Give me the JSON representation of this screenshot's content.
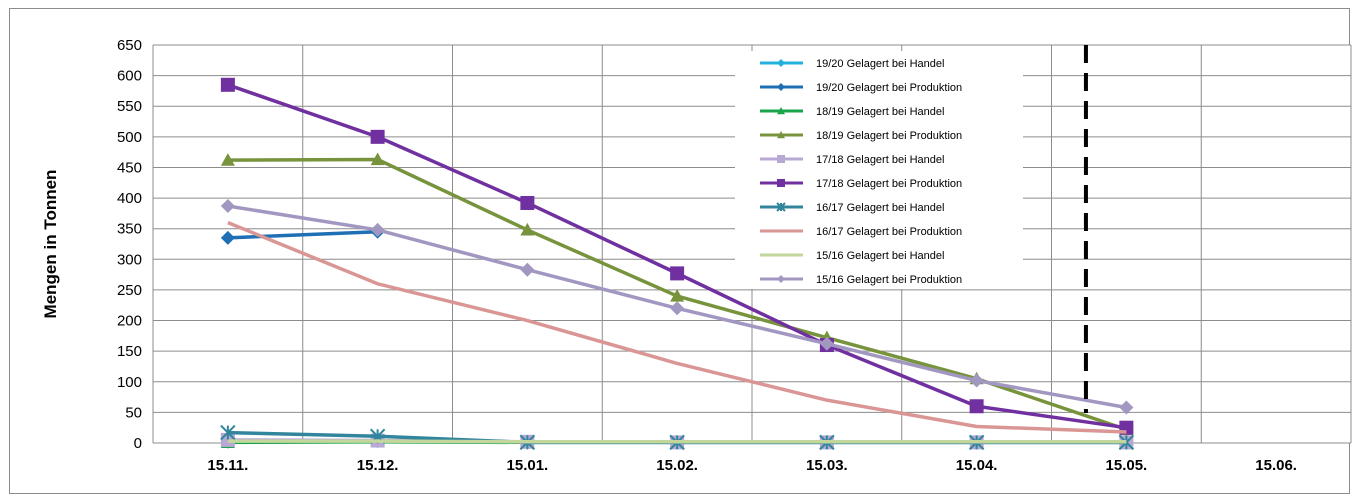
{
  "chart_data": {
    "type": "line",
    "title": "",
    "xlabel": "",
    "ylabel": "Mengen in Tonnen",
    "ylim": [
      0,
      650
    ],
    "yticks": [
      0,
      50,
      100,
      150,
      200,
      250,
      300,
      350,
      400,
      450,
      500,
      550,
      600,
      650
    ],
    "categories": [
      "15.11.",
      "15.12.",
      "15.01.",
      "15.02.",
      "15.03.",
      "15.04.",
      "15.05.",
      "15.06."
    ],
    "grid": true,
    "legend_position": "top-right (inside plot)",
    "marker_line": {
      "between": [
        "15.04.",
        "15.05."
      ],
      "style": "dashed",
      "color": "#000000"
    },
    "series": [
      {
        "name": "19/20 Gelagert bei Handel",
        "color": "#22b0dc",
        "marker": "diamond",
        "values": [
          2,
          3,
          null,
          null,
          null,
          null,
          null,
          null
        ]
      },
      {
        "name": "19/20 Gelagert bei Produktion",
        "color": "#1f6fb5",
        "marker": "diamond",
        "values": [
          335,
          345,
          null,
          null,
          null,
          null,
          null,
          null
        ]
      },
      {
        "name": "18/19 Gelagert bei Handel",
        "color": "#18a44a",
        "marker": "triangle",
        "values": [
          1,
          2,
          1,
          1,
          1,
          1,
          1,
          null
        ]
      },
      {
        "name": "18/19 Gelagert bei Produktion",
        "color": "#77933c",
        "marker": "triangle",
        "values": [
          462,
          463,
          348,
          240,
          172,
          105,
          22,
          null
        ]
      },
      {
        "name": "17/18 Gelagert bei Handel",
        "color": "#b7a8d4",
        "marker": "square",
        "values": [
          5,
          4,
          2,
          1,
          1,
          1,
          1,
          null
        ]
      },
      {
        "name": "17/18 Gelagert bei Produktion",
        "color": "#7030a0",
        "marker": "square",
        "values": [
          585,
          500,
          392,
          277,
          160,
          60,
          25,
          null
        ]
      },
      {
        "name": "16/17 Gelagert bei Handel",
        "color": "#31859c",
        "marker": "star",
        "values": [
          17,
          11,
          1,
          1,
          1,
          1,
          1,
          null
        ]
      },
      {
        "name": "16/17 Gelagert bei Produktion",
        "color": "#d99694",
        "marker": "none",
        "values": [
          360,
          260,
          200,
          130,
          70,
          27,
          18,
          null
        ]
      },
      {
        "name": "15/16 Gelagert bei Handel",
        "color": "#c3d69b",
        "marker": "none",
        "values": [
          3,
          3,
          2,
          2,
          2,
          2,
          2,
          null
        ]
      },
      {
        "name": "15/16 Gelagert bei Produktion",
        "color": "#a297c1",
        "marker": "diamond",
        "values": [
          387,
          348,
          283,
          220,
          162,
          102,
          58,
          null
        ]
      }
    ]
  }
}
